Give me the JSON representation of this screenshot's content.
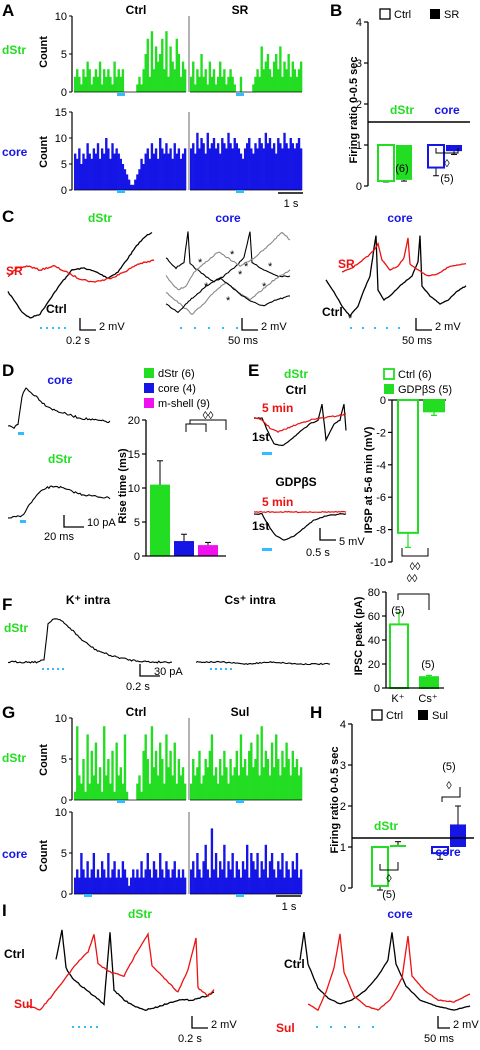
{
  "colors": {
    "dstr": "#22dd22",
    "core": "#1515e6",
    "mshell": "#ee10ee",
    "red": "#ee1111",
    "stim": "#33bbff",
    "black": "#000000",
    "gray": "#888888"
  },
  "panels": {
    "A": "A",
    "B": "B",
    "C": "C",
    "D": "D",
    "E": "E",
    "F": "F",
    "G": "G",
    "H": "H",
    "I": "I"
  },
  "labels": {
    "ctrl": "Ctrl",
    "sr": "SR",
    "sul": "Sul",
    "dstr": "dStr",
    "core": "core",
    "count": "Count",
    "first": "1st",
    "five_min": "5 min",
    "gdpbs": "GDPβS",
    "k_intra": "K⁺ intra",
    "cs_intra": "Cs⁺ intra",
    "ratio_axis": "Firing ratio 0-0.5 sec",
    "scale_1s": "1 s",
    "scale_2mv": "2 mV",
    "scale_02s": "0.2 s",
    "scale_50ms": "50 ms",
    "scale_10pa": "10 pA",
    "scale_20ms": "20 ms",
    "scale_5mv": "5 mV",
    "scale_05s": "0.5 s",
    "scale_30pa": "30 pA",
    "n6": "(6)",
    "n5": "(5)",
    "diamond": "◊",
    "diamond2": "◊◊"
  },
  "chart_data": [
    {
      "panel": "A",
      "type": "histogram",
      "layout": "2x2",
      "columns": [
        "Ctrl",
        "SR"
      ],
      "rows": [
        "dStr",
        "core"
      ],
      "dstr_ylim": [
        0,
        10
      ],
      "dstr_yticks": [
        0,
        5,
        10
      ],
      "core_ylim": [
        0,
        15
      ],
      "core_yticks": [
        0,
        5,
        10,
        15
      ],
      "dstr_ctrl": [
        2,
        3,
        2,
        1,
        3,
        2,
        4,
        3,
        1,
        2,
        3,
        2,
        4,
        1,
        3,
        2,
        3,
        2,
        1,
        4,
        2,
        3,
        2,
        3,
        0,
        0,
        0,
        0,
        0,
        0,
        1,
        2,
        1,
        3,
        5,
        7,
        2,
        8,
        3,
        6,
        4,
        5,
        7,
        3,
        8,
        2,
        6,
        4,
        3,
        7,
        5,
        2,
        4,
        3
      ],
      "dstr_sr": [
        2,
        4,
        1,
        3,
        2,
        5,
        2,
        3,
        1,
        4,
        2,
        3,
        1,
        2,
        4,
        2,
        3,
        1,
        2,
        3,
        2,
        1,
        0,
        0,
        2,
        0,
        0,
        0,
        0,
        0,
        1,
        2,
        3,
        2,
        6,
        3,
        4,
        5,
        3,
        2,
        4,
        5,
        3,
        6,
        2,
        4,
        3,
        5,
        2,
        4,
        3,
        2,
        3,
        4
      ],
      "core_ctrl": [
        7,
        6,
        8,
        5,
        7,
        6,
        9,
        7,
        6,
        8,
        7,
        9,
        6,
        8,
        7,
        10,
        8,
        6,
        9,
        7,
        8,
        7,
        6,
        5,
        4,
        3,
        2,
        1,
        1,
        2,
        3,
        4,
        6,
        5,
        7,
        8,
        6,
        9,
        7,
        8,
        6,
        10,
        8,
        7,
        9,
        7,
        8,
        6,
        9,
        7,
        8,
        6,
        7,
        8
      ],
      "core_sr": [
        8,
        9,
        7,
        11,
        8,
        10,
        9,
        7,
        11,
        8,
        9,
        10,
        8,
        9,
        7,
        10,
        9,
        8,
        11,
        9,
        8,
        10,
        9,
        8,
        7,
        6,
        8,
        9,
        10,
        8,
        7,
        9,
        8,
        10,
        9,
        8,
        11,
        9,
        10,
        8,
        9,
        7,
        10,
        9,
        8,
        11,
        9,
        8,
        10,
        9,
        8,
        9,
        10,
        8
      ],
      "xaxis": "time (bins), 1 s scale bar",
      "stimulus": "blue bar"
    },
    {
      "panel": "B",
      "type": "bar",
      "ylabel": "Firing ratio 0-0.5 sec",
      "ylim": [
        0,
        4
      ],
      "yticks": [
        0,
        1,
        2,
        3,
        4
      ],
      "baseline": 1,
      "legend": [
        "Ctrl",
        "SR"
      ],
      "legend_position": "top",
      "groups": [
        {
          "name": "dStr",
          "ctrl": 0.12,
          "sr": 0.15,
          "ctrl_err": 0.02,
          "sr_err": 0.03,
          "n": "(6)"
        },
        {
          "name": "core",
          "ctrl": 0.45,
          "sr": 0.85,
          "ctrl_err": 0.2,
          "sr_err": 0.08,
          "n": "(5)",
          "sig": "◊"
        }
      ]
    },
    {
      "panel": "C",
      "type": "line",
      "traces": [
        {
          "group": "dStr",
          "series": [
            "SR",
            "Ctrl"
          ],
          "stim_pulses": 5
        },
        {
          "group": "core",
          "series": [
            "overlaid sweeps with * marks"
          ],
          "stim_pulses": 5
        },
        {
          "group": "core",
          "series": [
            "SR",
            "Ctrl"
          ],
          "stim_pulses": 5
        }
      ]
    },
    {
      "panel": "D",
      "type": "bar",
      "ylabel": "Rise time (ms)",
      "ylim": [
        0,
        20
      ],
      "yticks": [
        0,
        5,
        10,
        15,
        20
      ],
      "legend": [
        "dStr (6)",
        "core (4)",
        "m-shell (9)"
      ],
      "legend_position": "top",
      "series": [
        {
          "name": "dStr (6)",
          "value": 10.5,
          "err": 3.5
        },
        {
          "name": "core (4)",
          "value": 2.2,
          "err": 1.0
        },
        {
          "name": "m-shell (9)",
          "value": 1.6,
          "err": 0.4
        }
      ],
      "sig": "◊◊"
    },
    {
      "panel": "E",
      "type": "bar",
      "ylabel": "IPSP at 5-6 min (mV)",
      "ylim": [
        -10,
        0
      ],
      "yticks": [
        0,
        -2,
        -4,
        -6,
        -8,
        -10
      ],
      "legend": [
        "Ctrl (6)",
        "GDPβS (5)"
      ],
      "legend_position": "top",
      "series": [
        {
          "name": "Ctrl (6)",
          "value": -8.2,
          "err": 0.9
        },
        {
          "name": "GDPβS (5)",
          "value": -0.7,
          "err": 0.25
        }
      ],
      "sig": "◊◊"
    },
    {
      "panel": "F",
      "type": "bar",
      "ylabel": "IPSC peak (pA)",
      "ylim": [
        0,
        80
      ],
      "yticks": [
        0,
        20,
        40,
        60,
        80
      ],
      "categories": [
        "K⁺",
        "Cs⁺"
      ],
      "series": [
        {
          "name": "K⁺",
          "value": 53,
          "err": 10,
          "n": "(5)"
        },
        {
          "name": "Cs⁺",
          "value": 9,
          "err": 1.5,
          "n": "(5)"
        }
      ],
      "sig": "◊◊"
    },
    {
      "panel": "G",
      "type": "histogram",
      "layout": "2x2",
      "columns": [
        "Ctrl",
        "Sul"
      ],
      "rows": [
        "dStr",
        "core"
      ],
      "dstr_ylim": [
        0,
        10
      ],
      "dstr_yticks": [
        0,
        5,
        10
      ],
      "core_ylim": [
        0,
        10
      ],
      "core_yticks": [
        0,
        5,
        10
      ],
      "dstr_ctrl": [
        1,
        9,
        3,
        2,
        5,
        1,
        8,
        2,
        6,
        3,
        7,
        2,
        4,
        1,
        9,
        3,
        5,
        2,
        6,
        1,
        7,
        3,
        4,
        2,
        8,
        1,
        0,
        0,
        0,
        0,
        2,
        3,
        1,
        6,
        8,
        5,
        2,
        9,
        4,
        6,
        3,
        7,
        5,
        2,
        8,
        4,
        6,
        3,
        7,
        2,
        5,
        3,
        4,
        2
      ],
      "dstr_sul": [
        2,
        5,
        3,
        4,
        6,
        2,
        3,
        5,
        4,
        6,
        8,
        3,
        4,
        2,
        5,
        3,
        6,
        4,
        2,
        5,
        3,
        4,
        6,
        3,
        8,
        4,
        5,
        3,
        6,
        7,
        4,
        5,
        8,
        3,
        9,
        4,
        6,
        5,
        3,
        7,
        4,
        8,
        5,
        3,
        6,
        4,
        7,
        5,
        3,
        6,
        4,
        5,
        3,
        4
      ],
      "core_ctrl": [
        2,
        3,
        2,
        5,
        3,
        2,
        4,
        2,
        3,
        5,
        2,
        3,
        2,
        4,
        3,
        2,
        5,
        2,
        3,
        4,
        2,
        3,
        2,
        4,
        3,
        2,
        1,
        2,
        3,
        2,
        3,
        2,
        4,
        2,
        3,
        5,
        3,
        2,
        4,
        3,
        2,
        5,
        3,
        2,
        4,
        3,
        2,
        3,
        4,
        2,
        3,
        2,
        3,
        2
      ],
      "core_sul": [
        3,
        4,
        2,
        5,
        3,
        2,
        4,
        6,
        3,
        2,
        8,
        3,
        5,
        2,
        4,
        3,
        6,
        2,
        4,
        3,
        5,
        2,
        4,
        3,
        2,
        4,
        3,
        6,
        2,
        5,
        4,
        3,
        5,
        2,
        4,
        3,
        6,
        2,
        4,
        5,
        3,
        2,
        4,
        3,
        5,
        2,
        4,
        3,
        2,
        4,
        3,
        5,
        2,
        3
      ],
      "xaxis": "time (bins), 1 s scale bar",
      "stimulus": "blue bar"
    },
    {
      "panel": "H",
      "type": "bar",
      "ylabel": "Firing ratio 0-0.5 sec",
      "ylim": [
        0,
        4
      ],
      "yticks": [
        0,
        1,
        2,
        3,
        4
      ],
      "baseline": 1,
      "legend": [
        "Ctrl",
        "Sul"
      ],
      "legend_position": "top",
      "groups": [
        {
          "name": "dStr",
          "ctrl": 0.05,
          "sul": 1.05,
          "ctrl_err": 0.1,
          "sul_err": 0.08,
          "n": "(5)",
          "sig": "◊"
        },
        {
          "name": "core",
          "ctrl": 0.85,
          "sul": 1.55,
          "ctrl_err": 0.15,
          "sul_err": 0.45,
          "n": "(5)",
          "sig": "◊"
        }
      ]
    },
    {
      "panel": "I",
      "type": "line",
      "traces": [
        {
          "group": "dStr",
          "series": [
            "Ctrl",
            "Sul"
          ],
          "stim_pulses": 5
        },
        {
          "group": "core",
          "series": [
            "Ctrl",
            "Sul"
          ],
          "stim_pulses": 5
        }
      ]
    }
  ]
}
